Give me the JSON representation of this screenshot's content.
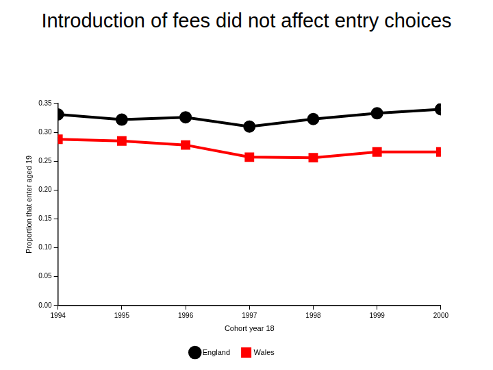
{
  "chart_data": {
    "type": "line",
    "title": "Introduction of fees did not affect entry choices",
    "x_label": "Cohort year 18",
    "y_label": "Proportion that enter aged 19",
    "categories": [
      "1994",
      "1995",
      "1996",
      "1997",
      "1998",
      "1999",
      "2000"
    ],
    "series": [
      {
        "name": "England",
        "color": "#000000",
        "marker": "circle",
        "line_style": "solid",
        "values": [
          0.331,
          0.322,
          0.326,
          0.31,
          0.323,
          0.333,
          0.34
        ]
      },
      {
        "name": "Wales",
        "color": "#ff0000",
        "marker": "square",
        "line_style": "solid",
        "values": [
          0.288,
          0.285,
          0.278,
          0.257,
          0.256,
          0.266,
          0.266
        ]
      }
    ],
    "ylim": [
      0,
      0.35
    ],
    "yticks": [
      {
        "value": 0,
        "label": "0.00"
      },
      0.05,
      {
        "value": 0.1,
        "label": "0.10"
      },
      0.15,
      {
        "value": 0.2,
        "label": "0.20"
      },
      0.25,
      {
        "value": 0.3,
        "label": "0.30"
      },
      0.35
    ],
    "grid": false,
    "legend": "bottom"
  }
}
